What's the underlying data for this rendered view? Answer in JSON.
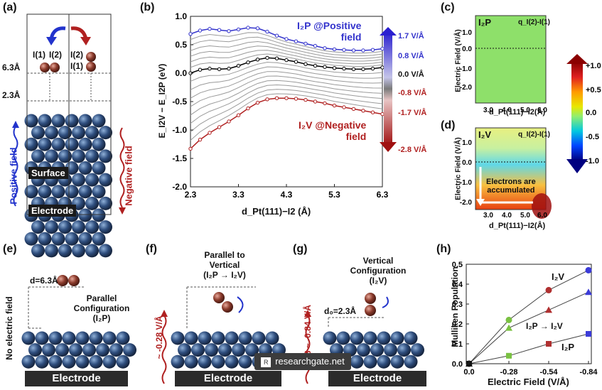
{
  "panels": {
    "a": {
      "label": "(a)",
      "i1": "I(1)",
      "i2": "I(2)",
      "i2b": "I(2)",
      "i1b": "I(1)",
      "h1": "6.3Å",
      "h2": "2.3Å",
      "surface": "Surface",
      "electrode": "Electrode",
      "pos": "Positive field",
      "neg": "Negative field"
    },
    "b": {
      "label": "(b)",
      "ylabel": "E_I2V − E_I2P (eV)",
      "xlabel": "d_Pt(111)−I2 (Å)",
      "top_note_line1": "I₂P @Positive",
      "top_note_line2": "field",
      "bot_note_line1": "I₂V @Negative",
      "bot_note_line2": "field",
      "cb_ticks": [
        "1.7 V/Å",
        "0.8 V/Å",
        "0.0 V/Å",
        "-0.8 V/Å",
        "-1.7 V/Å",
        "-2.8 V/Å"
      ]
    },
    "c": {
      "label": "(c)",
      "tag": "I₂P",
      "q": "q_I(2)-I(1)",
      "ylabel": "Electric Field (V/Å)",
      "xlabel": "d_Pt(111)−I2(Å)"
    },
    "d": {
      "label": "(d)",
      "tag": "I₂V",
      "q": "q_I(2)-I(1)",
      "ylabel": "Electric Field (V/Å)",
      "xlabel": "d_Pt(111)−I2(Å)",
      "note_line1": "Electrons are",
      "note_line2": "accumulated"
    },
    "cbar": {
      "ticks": [
        "+1.0",
        "+0.5",
        "0.0",
        "-0.5",
        "-1.0"
      ]
    },
    "e": {
      "label": "(e)",
      "d": "d=6.3Å",
      "conf1": "Parallel",
      "conf2": "Configuration",
      "conf3": "(I₂P)",
      "side": "No electric field",
      "electrode": "Electrode"
    },
    "f": {
      "label": "(f)",
      "t1": "Parallel to",
      "t2": "Vertical",
      "t3": "(I₂P → I₂V)",
      "side": "~ -0.28 V/Å",
      "electrode": "Electrode"
    },
    "g": {
      "label": "(g)",
      "t1": "Vertical",
      "t2": "Configuration",
      "t3": "(I₂V)",
      "d": "d₀=2.3Å",
      "side": "-0.28 ~ -0.84 V/Å",
      "electrode": "Electrode"
    },
    "h": {
      "label": "(h)",
      "ylabel": "Mulliken Population",
      "xlabel": "Electric Field (V/Å)",
      "s1": "I₂V",
      "s2": "I₂P → I₂V",
      "s3": "I₂P"
    }
  },
  "watermark": "researchgate.net",
  "chart_data": [
    {
      "type": "line",
      "panel": "b",
      "xlabel": "d_Pt(111)−I2 (Å)",
      "ylabel": "E_I2V − E_I2P (eV)",
      "xlim": [
        2.3,
        6.3
      ],
      "ylim": [
        -2.0,
        1.0
      ],
      "x_ticks": [
        "2.3",
        "3.3",
        "4.3",
        "5.3",
        "6.3"
      ],
      "y_ticks": [
        "1.0",
        "0.5",
        "0.0",
        "-0.5",
        "-1.0",
        "-1.5",
        "-2.0"
      ],
      "series": [
        {
          "name": "1.7 V/Å",
          "color": "#3333cc",
          "x": [
            2.3,
            2.5,
            2.7,
            2.9,
            3.1,
            3.3,
            3.5,
            3.7,
            3.9,
            4.1,
            4.3,
            4.5,
            4.7,
            4.9,
            5.1,
            5.3,
            5.5,
            5.7,
            5.9,
            6.1,
            6.3
          ],
          "values": [
            0.69,
            0.75,
            0.78,
            0.76,
            0.74,
            0.77,
            0.8,
            0.79,
            0.73,
            0.66,
            0.6,
            0.56,
            0.52,
            0.48,
            0.44,
            0.42,
            0.41,
            0.4,
            0.4,
            0.41,
            0.43
          ]
        },
        {
          "name": "0.0 V/Å",
          "color": "#000000",
          "x": [
            2.3,
            2.5,
            2.7,
            2.9,
            3.1,
            3.3,
            3.5,
            3.7,
            3.9,
            4.1,
            4.3,
            4.5,
            4.7,
            4.9,
            5.1,
            5.3,
            5.5,
            5.7,
            5.9,
            6.1,
            6.3
          ],
          "values": [
            0.0,
            0.06,
            0.08,
            0.07,
            0.08,
            0.13,
            0.19,
            0.24,
            0.27,
            0.26,
            0.23,
            0.2,
            0.16,
            0.13,
            0.11,
            0.09,
            0.08,
            0.07,
            0.07,
            0.08,
            0.1
          ]
        },
        {
          "name": "-2.8 V/Å",
          "color": "#b02020",
          "x": [
            2.3,
            2.5,
            2.7,
            2.9,
            3.1,
            3.3,
            3.5,
            3.7,
            3.9,
            4.1,
            4.3,
            4.5,
            4.7,
            4.9,
            5.1,
            5.3,
            5.5,
            5.7,
            5.9,
            6.1,
            6.3
          ],
          "values": [
            -1.33,
            -1.17,
            -1.05,
            -0.95,
            -0.85,
            -0.74,
            -0.62,
            -0.52,
            -0.46,
            -0.44,
            -0.44,
            -0.45,
            -0.47,
            -0.5,
            -0.53,
            -0.57,
            -0.6,
            -0.63,
            -0.66,
            -0.69,
            -0.72
          ]
        }
      ]
    },
    {
      "type": "line",
      "panel": "h",
      "xlabel": "Electric Field (V/Å)",
      "ylabel": "Mulliken Population",
      "categories": [
        "0.0",
        "-0.28",
        "-0.54",
        "-0.84"
      ],
      "ylim": [
        0.0,
        0.5
      ],
      "y_ticks": [
        "0.0",
        "0.1",
        "0.2",
        "0.3",
        "0.4",
        "0.5"
      ],
      "series": [
        {
          "name": "I₂V",
          "color": "#4444dd",
          "marker": "circle",
          "values": [
            0.0,
            0.22,
            0.37,
            0.47
          ]
        },
        {
          "name": "I₂P → I₂V",
          "color": "#2f64c8",
          "marker": "triangle",
          "values": [
            0.0,
            0.18,
            0.27,
            0.36
          ]
        },
        {
          "name": "I₂P",
          "color": "#2f64c8",
          "marker": "square",
          "values": [
            0.0,
            0.04,
            0.1,
            0.15
          ]
        }
      ],
      "marker_colors": [
        "#111111",
        "#7ac142",
        "#b03030",
        "#3b3bd8"
      ]
    }
  ]
}
